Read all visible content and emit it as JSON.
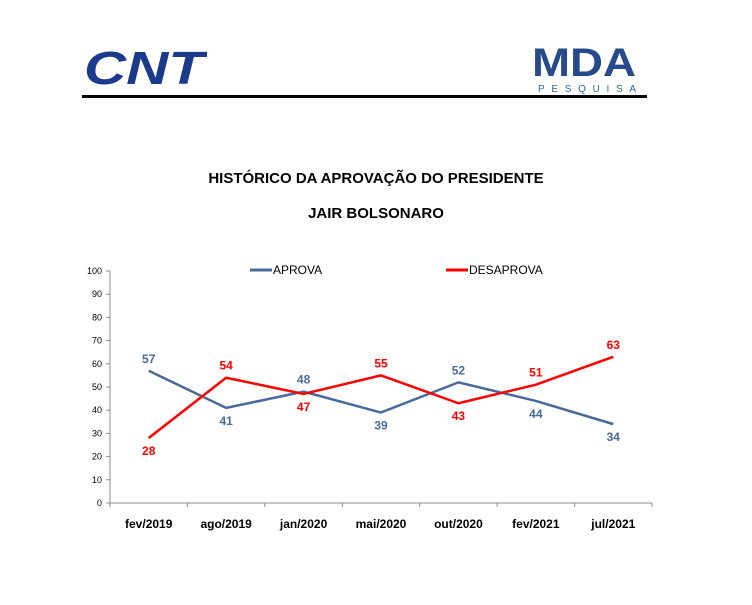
{
  "header": {
    "cnt_logo_text": "CNT",
    "mda_logo_text": "MDA",
    "mda_logo_sub": "PESQUISA",
    "colors": {
      "cnt": "#1b3a8c",
      "mda": "#274a8a",
      "mda_sub": "#2b6b9a"
    }
  },
  "chart_data": {
    "type": "line",
    "title": "HISTÓRICO DA APROVAÇÃO DO PRESIDENTE",
    "subtitle": "JAIR BOLSONARO",
    "categories": [
      "fev/2019",
      "ago/2019",
      "jan/2020",
      "mai/2020",
      "out/2020",
      "fev/2021",
      "jul/2021"
    ],
    "series": [
      {
        "name": "APROVA",
        "values": [
          57,
          41,
          48,
          39,
          52,
          44,
          34
        ],
        "color": "#4a6a9a"
      },
      {
        "name": "DESAPROVA",
        "values": [
          28,
          54,
          47,
          55,
          43,
          51,
          63
        ],
        "color": "#ff0000"
      }
    ],
    "ylim": [
      0,
      100
    ],
    "yticks": [
      0,
      10,
      20,
      30,
      40,
      50,
      60,
      70,
      80,
      90,
      100
    ],
    "grid": false,
    "legend": "top"
  }
}
